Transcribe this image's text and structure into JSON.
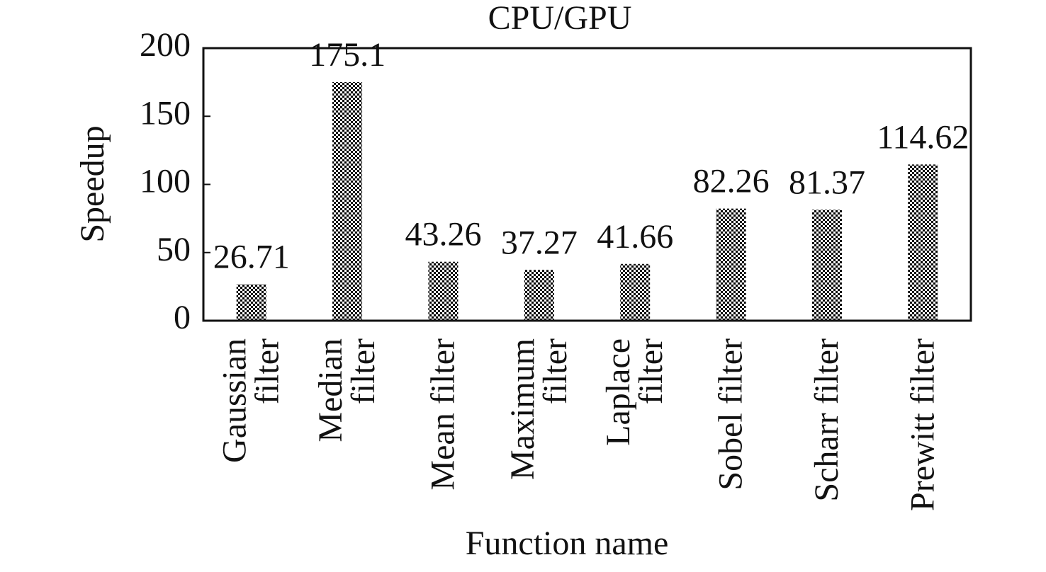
{
  "chart_data": {
    "type": "bar",
    "title": "CPU/GPU",
    "x_label": "Function name",
    "y_label": "Speedup",
    "categories": [
      "Gaussian filter",
      "Median filter",
      "Mean filter",
      "Maximum filter",
      "Laplace filter",
      "Sobel filter",
      "Scharr filter",
      "Prewitt filter"
    ],
    "values": [
      26.71,
      175.1,
      43.26,
      37.27,
      41.66,
      82.26,
      81.37,
      114.62
    ],
    "color": "#000000",
    "ylim": [
      0,
      200
    ],
    "yticks": [
      0,
      50,
      100,
      150,
      200
    ],
    "grid": false
  }
}
